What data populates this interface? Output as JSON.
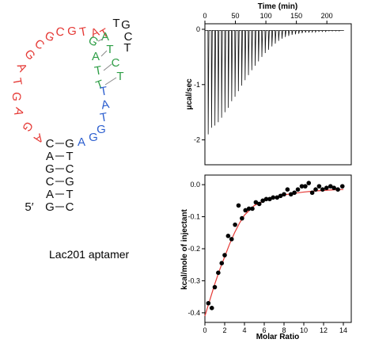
{
  "colors": {
    "red_segment": "#e53935",
    "green_segment": "#2e9e46",
    "blue_segment": "#2d5fcf",
    "fit_line": "#e53935",
    "black": "#111111"
  },
  "aptamer": {
    "caption": "Lac201 aptamer",
    "five_prime": "5′",
    "stem_left": [
      "C",
      "A",
      "G",
      "C",
      "A",
      "G"
    ],
    "stem_right": [
      "G",
      "T",
      "C",
      "G",
      "T",
      "C"
    ],
    "loop_red": [
      "A",
      "G",
      "A",
      "G",
      "T",
      "A",
      "G",
      "C",
      "G",
      "C",
      "G",
      "T",
      "A",
      "T"
    ],
    "inner_left": [
      "G",
      "A",
      "T",
      "T"
    ],
    "inner_right": [
      "A",
      "T",
      "C",
      "T"
    ],
    "apex": [
      "T",
      "G",
      "C",
      "T"
    ],
    "blue": [
      "T",
      "A",
      "T",
      "G",
      "G",
      "A"
    ]
  },
  "chart_data": [
    {
      "type": "line",
      "title": "",
      "xlabel": "Time (min)",
      "ylabel": "μcal/sec",
      "x_ticks": [
        0,
        50,
        100,
        150,
        200
      ],
      "y_ticks": [
        0,
        -1,
        -2
      ],
      "xlim": [
        0,
        240
      ],
      "ylim": [
        -2.45,
        0.1
      ],
      "injections": 40,
      "peaks": [
        -1.9,
        -1.78,
        -1.74,
        -1.68,
        -1.6,
        -1.5,
        -1.42,
        -1.3,
        -1.22,
        -1.12,
        -1.02,
        -0.92,
        -0.83,
        -0.74,
        -0.66,
        -0.58,
        -0.5,
        -0.43,
        -0.37,
        -0.31,
        -0.26,
        -0.21,
        -0.17,
        -0.14,
        -0.12,
        -0.1,
        -0.09,
        -0.08,
        -0.07,
        -0.06,
        -0.06,
        -0.05,
        -0.05,
        -0.04,
        -0.04,
        -0.04,
        -0.03,
        -0.03,
        -0.03,
        -0.03
      ]
    },
    {
      "type": "scatter",
      "title": "",
      "xlabel": "Molar Ratio",
      "ylabel": "kcal/mole of injectant",
      "x_ticks": [
        0,
        2,
        4,
        6,
        8,
        10,
        12,
        14
      ],
      "y_ticks": [
        0.0,
        -0.1,
        -0.2,
        -0.3,
        -0.4
      ],
      "xlim": [
        0,
        14.8
      ],
      "ylim": [
        -0.43,
        0.03
      ],
      "points": [
        {
          "x": 0.35,
          "y": -0.37
        },
        {
          "x": 0.7,
          "y": -0.385
        },
        {
          "x": 1.0,
          "y": -0.32
        },
        {
          "x": 1.35,
          "y": -0.275
        },
        {
          "x": 1.7,
          "y": -0.245
        },
        {
          "x": 2.0,
          "y": -0.22
        },
        {
          "x": 2.35,
          "y": -0.16
        },
        {
          "x": 2.7,
          "y": -0.17
        },
        {
          "x": 3.05,
          "y": -0.125
        },
        {
          "x": 3.4,
          "y": -0.065
        },
        {
          "x": 3.75,
          "y": -0.105
        },
        {
          "x": 4.1,
          "y": -0.08
        },
        {
          "x": 4.45,
          "y": -0.075
        },
        {
          "x": 4.8,
          "y": -0.075
        },
        {
          "x": 5.15,
          "y": -0.055
        },
        {
          "x": 5.5,
          "y": -0.06
        },
        {
          "x": 5.85,
          "y": -0.05
        },
        {
          "x": 6.2,
          "y": -0.045
        },
        {
          "x": 6.55,
          "y": -0.045
        },
        {
          "x": 6.9,
          "y": -0.04
        },
        {
          "x": 7.3,
          "y": -0.04
        },
        {
          "x": 7.65,
          "y": -0.035
        },
        {
          "x": 8.0,
          "y": -0.03
        },
        {
          "x": 8.35,
          "y": -0.015
        },
        {
          "x": 8.7,
          "y": -0.03
        },
        {
          "x": 9.05,
          "y": -0.025
        },
        {
          "x": 9.4,
          "y": -0.015
        },
        {
          "x": 9.8,
          "y": -0.005
        },
        {
          "x": 10.15,
          "y": -0.005
        },
        {
          "x": 10.5,
          "y": 0.005
        },
        {
          "x": 10.85,
          "y": -0.025
        },
        {
          "x": 11.2,
          "y": -0.015
        },
        {
          "x": 11.55,
          "y": -0.005
        },
        {
          "x": 11.9,
          "y": -0.015
        },
        {
          "x": 12.3,
          "y": -0.01
        },
        {
          "x": 12.7,
          "y": -0.005
        },
        {
          "x": 13.05,
          "y": -0.01
        },
        {
          "x": 13.45,
          "y": -0.015
        },
        {
          "x": 13.9,
          "y": -0.005
        }
      ],
      "fit": {
        "x": [
          0,
          0.5,
          1,
          1.5,
          2,
          2.5,
          3,
          3.5,
          4,
          5,
          6,
          7,
          8,
          9,
          10,
          11,
          12,
          13,
          14
        ],
        "y": [
          -0.41,
          -0.36,
          -0.31,
          -0.265,
          -0.225,
          -0.185,
          -0.15,
          -0.12,
          -0.095,
          -0.065,
          -0.05,
          -0.04,
          -0.032,
          -0.027,
          -0.023,
          -0.02,
          -0.018,
          -0.016,
          -0.015
        ]
      }
    }
  ]
}
